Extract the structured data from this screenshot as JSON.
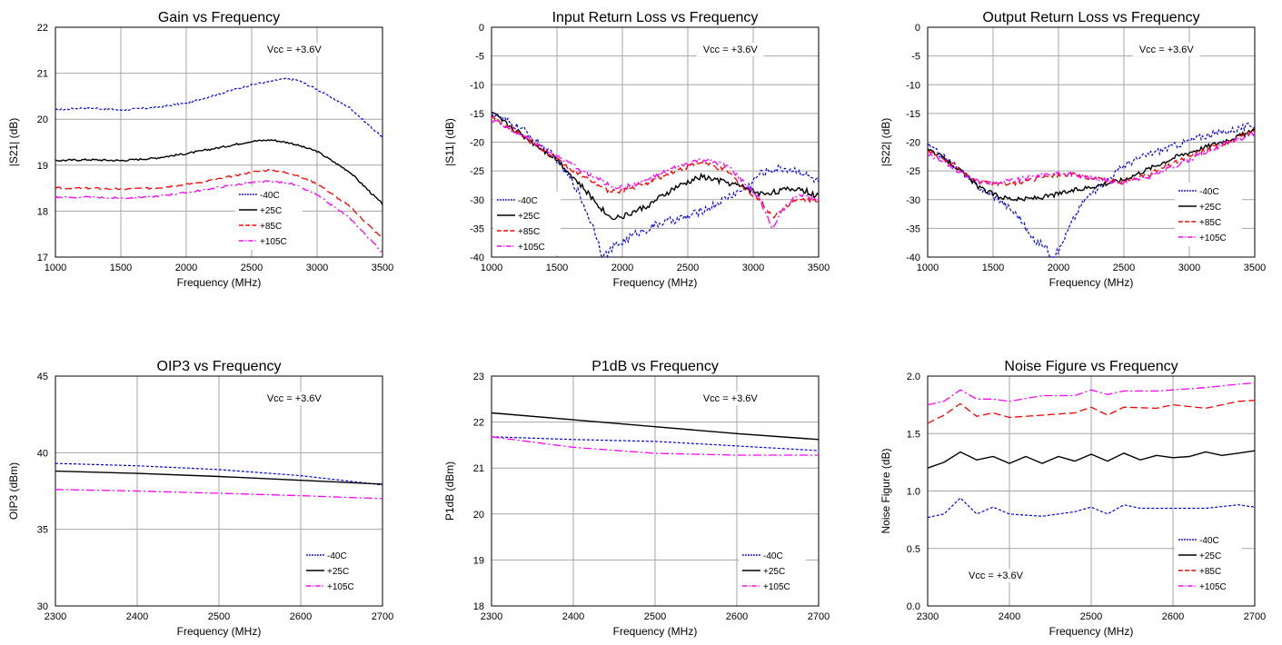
{
  "styles": {
    "-40C": {
      "color": "#0000ff",
      "dash": "3,2",
      "width": 1.2
    },
    "+25C": {
      "color": "#000000",
      "dash": "",
      "width": 1.4
    },
    "+85C": {
      "color": "#ff0000",
      "dash": "8,4",
      "width": 1.3
    },
    "+105C": {
      "color": "#ff00ff",
      "dash": "9,3,2,3",
      "width": 1.3
    }
  },
  "chart_data": [
    {
      "type": "line",
      "title": "Gain vs Frequency",
      "xlabel": "Frequency (MHz)",
      "ylabel": "|S21| (dB)",
      "xlim": [
        1000,
        3500
      ],
      "ylim": [
        17,
        22
      ],
      "xticks": [
        1000,
        1500,
        2000,
        2500,
        3000,
        3500
      ],
      "yticks": [
        17,
        18,
        19,
        20,
        21,
        22
      ],
      "tick_decimals": 0,
      "annotation": "Vcc = +3.6V",
      "legend": "bottom-center",
      "series": [
        {
          "name": "-40C",
          "noise": 0.02,
          "x": [
            1000,
            1250,
            1500,
            1750,
            2000,
            2250,
            2500,
            2750,
            2850,
            3000,
            3250,
            3500
          ],
          "y": [
            20.2,
            20.25,
            20.2,
            20.25,
            20.35,
            20.55,
            20.75,
            20.88,
            20.85,
            20.65,
            20.25,
            19.6
          ]
        },
        {
          "name": "+25C",
          "noise": 0.02,
          "x": [
            1000,
            1250,
            1500,
            1750,
            2000,
            2250,
            2500,
            2650,
            2800,
            3000,
            3250,
            3500
          ],
          "y": [
            19.1,
            19.12,
            19.1,
            19.15,
            19.25,
            19.38,
            19.52,
            19.55,
            19.48,
            19.3,
            18.85,
            18.15
          ]
        },
        {
          "name": "+85C",
          "noise": 0.02,
          "x": [
            1000,
            1250,
            1500,
            1750,
            2000,
            2250,
            2500,
            2650,
            2800,
            3000,
            3250,
            3500
          ],
          "y": [
            18.5,
            18.5,
            18.48,
            18.5,
            18.58,
            18.7,
            18.85,
            18.9,
            18.82,
            18.6,
            18.1,
            17.4
          ]
        },
        {
          "name": "+105C",
          "noise": 0.02,
          "x": [
            1000,
            1250,
            1500,
            1750,
            2000,
            2250,
            2500,
            2650,
            2800,
            3000,
            3250,
            3500
          ],
          "y": [
            18.3,
            18.3,
            18.28,
            18.32,
            18.4,
            18.52,
            18.62,
            18.65,
            18.6,
            18.35,
            17.85,
            17.1
          ]
        }
      ]
    },
    {
      "type": "line",
      "title": "Input Return Loss vs Frequency",
      "xlabel": "Frequency (MHz)",
      "ylabel": "|S11| (dB)",
      "xlim": [
        1000,
        3500
      ],
      "ylim": [
        -40,
        0
      ],
      "xticks": [
        1000,
        1500,
        2000,
        2500,
        3000,
        3500
      ],
      "yticks": [
        -40,
        -35,
        -30,
        -25,
        -20,
        -15,
        -10,
        -5,
        0
      ],
      "tick_decimals": 0,
      "annotation": "Vcc = +3.6V",
      "legend": "bottom-left",
      "series": [
        {
          "name": "-40C",
          "noise": 0.7,
          "x": [
            1000,
            1250,
            1500,
            1650,
            1800,
            1850,
            1950,
            2100,
            2300,
            2500,
            2700,
            2850,
            2950,
            3050,
            3200,
            3350,
            3500
          ],
          "y": [
            -15,
            -18,
            -23,
            -28,
            -36,
            -40,
            -38,
            -36,
            -34,
            -33,
            -31,
            -29,
            -28,
            -25.5,
            -24.5,
            -25,
            -27
          ]
        },
        {
          "name": "+25C",
          "noise": 0.5,
          "x": [
            1000,
            1250,
            1500,
            1700,
            1900,
            2000,
            2200,
            2400,
            2600,
            2800,
            2950,
            3050,
            3200,
            3350,
            3500
          ],
          "y": [
            -15,
            -19,
            -23,
            -28,
            -33,
            -33,
            -31,
            -28,
            -26,
            -27,
            -28,
            -29,
            -28.5,
            -28,
            -29.5
          ]
        },
        {
          "name": "+85C",
          "noise": 0.4,
          "x": [
            1000,
            1250,
            1500,
            1700,
            1900,
            2000,
            2200,
            2400,
            2600,
            2800,
            2950,
            3050,
            3150,
            3250,
            3350,
            3500
          ],
          "y": [
            -15.5,
            -19,
            -23,
            -26,
            -28.5,
            -28.5,
            -27,
            -25,
            -23.5,
            -25,
            -28.5,
            -30,
            -33,
            -31,
            -30,
            -30
          ]
        },
        {
          "name": "+105C",
          "noise": 0.4,
          "x": [
            1000,
            1250,
            1500,
            1700,
            1900,
            2000,
            2200,
            2400,
            2600,
            2800,
            2950,
            3050,
            3150,
            3250,
            3350,
            3500
          ],
          "y": [
            -16,
            -19,
            -22.5,
            -25,
            -27.5,
            -28,
            -26.5,
            -24.5,
            -23,
            -24,
            -27.5,
            -30,
            -35,
            -31,
            -29,
            -30
          ]
        }
      ]
    },
    {
      "type": "line",
      "title": "Output Return Loss vs Frequency",
      "xlabel": "Frequency (MHz)",
      "ylabel": "|S22| (dB)",
      "xlim": [
        1000,
        3500
      ],
      "ylim": [
        -40,
        0
      ],
      "xticks": [
        1000,
        1500,
        2000,
        2500,
        3000,
        3500
      ],
      "yticks": [
        -40,
        -35,
        -30,
        -25,
        -20,
        -15,
        -10,
        -5,
        0
      ],
      "tick_decimals": 0,
      "annotation": "Vcc = +3.6V",
      "legend": "bottom-right",
      "series": [
        {
          "name": "-40C",
          "noise": 0.6,
          "x": [
            1000,
            1200,
            1400,
            1550,
            1700,
            1800,
            1900,
            1950,
            2000,
            2100,
            2200,
            2350,
            2500,
            2700,
            2900,
            3100,
            3300,
            3500
          ],
          "y": [
            -20.5,
            -24,
            -28,
            -30,
            -33,
            -37,
            -38,
            -40,
            -39,
            -34,
            -30,
            -27,
            -24,
            -22,
            -20.5,
            -19,
            -18,
            -17
          ]
        },
        {
          "name": "+25C",
          "noise": 0.4,
          "x": [
            1000,
            1200,
            1400,
            1550,
            1700,
            1900,
            2100,
            2300,
            2500,
            2700,
            2900,
            3100,
            3300,
            3500
          ],
          "y": [
            -21,
            -24,
            -28,
            -29.5,
            -30,
            -29.5,
            -28.5,
            -27.5,
            -26.5,
            -24.5,
            -22.5,
            -21,
            -19.5,
            -18
          ]
        },
        {
          "name": "+85C",
          "noise": 0.4,
          "x": [
            1000,
            1200,
            1400,
            1550,
            1700,
            1900,
            2100,
            2300,
            2500,
            2700,
            2900,
            3100,
            3300,
            3500
          ],
          "y": [
            -21.5,
            -24,
            -27,
            -27.5,
            -27,
            -26,
            -25.5,
            -26.5,
            -27,
            -25.5,
            -23.5,
            -21.5,
            -20,
            -18
          ]
        },
        {
          "name": "+105C",
          "noise": 0.4,
          "x": [
            1000,
            1200,
            1400,
            1550,
            1700,
            1900,
            2100,
            2300,
            2500,
            2700,
            2900,
            3100,
            3300,
            3500
          ],
          "y": [
            -22,
            -24.5,
            -27,
            -27,
            -26.5,
            -25.5,
            -25.5,
            -26.5,
            -27,
            -26,
            -24,
            -22,
            -20,
            -18.5
          ]
        }
      ]
    },
    {
      "type": "line",
      "title": "OIP3 vs Frequency",
      "xlabel": "Frequency (MHz)",
      "ylabel": "OIP3 (dBm)",
      "xlim": [
        2300,
        2700
      ],
      "ylim": [
        30,
        45
      ],
      "xticks": [
        2300,
        2400,
        2500,
        2600,
        2700
      ],
      "yticks": [
        30,
        35,
        40,
        45
      ],
      "tick_decimals": 0,
      "annotation": "Vcc = +3.6V",
      "legend": "bottom-right",
      "series": [
        {
          "name": "-40C",
          "x": [
            2300,
            2400,
            2500,
            2600,
            2700
          ],
          "y": [
            39.3,
            39.15,
            38.9,
            38.5,
            37.9
          ]
        },
        {
          "name": "+25C",
          "x": [
            2300,
            2400,
            2500,
            2600,
            2700
          ],
          "y": [
            38.8,
            38.65,
            38.45,
            38.2,
            37.95
          ]
        },
        {
          "name": "+105C",
          "x": [
            2300,
            2400,
            2500,
            2600,
            2700
          ],
          "y": [
            37.6,
            37.5,
            37.35,
            37.2,
            37.0
          ]
        }
      ]
    },
    {
      "type": "line",
      "title": "P1dB vs Frequency",
      "xlabel": "Frequency (MHz)",
      "ylabel": "P1dB (dBm)",
      "xlim": [
        2300,
        2700
      ],
      "ylim": [
        18,
        23
      ],
      "xticks": [
        2300,
        2400,
        2500,
        2600,
        2700
      ],
      "yticks": [
        18,
        19,
        20,
        21,
        22,
        23
      ],
      "tick_decimals": 0,
      "annotation": "Vcc = +3.6V",
      "legend": "bottom-right",
      "series": [
        {
          "name": "-40C",
          "x": [
            2300,
            2400,
            2500,
            2600,
            2700
          ],
          "y": [
            21.68,
            21.62,
            21.58,
            21.48,
            21.38
          ]
        },
        {
          "name": "+25C",
          "x": [
            2300,
            2400,
            2500,
            2600,
            2700
          ],
          "y": [
            22.2,
            22.05,
            21.9,
            21.75,
            21.62
          ]
        },
        {
          "name": "+105C",
          "x": [
            2300,
            2400,
            2500,
            2600,
            2700
          ],
          "y": [
            21.68,
            21.45,
            21.32,
            21.28,
            21.28
          ]
        }
      ]
    },
    {
      "type": "line",
      "title": "Noise Figure vs Frequency",
      "xlabel": "Frequency (MHz)",
      "ylabel": "Noise Figure (dB)",
      "xlim": [
        2300,
        2700
      ],
      "ylim": [
        0.0,
        2.0
      ],
      "xticks": [
        2300,
        2400,
        2500,
        2600,
        2700
      ],
      "yticks": [
        0.0,
        0.5,
        1.0,
        1.5,
        2.0
      ],
      "tick_decimals": 1,
      "annotation": "Vcc = +3.6V",
      "annotation_pos": "bottom-left",
      "legend": "bottom-right",
      "series": [
        {
          "name": "-40C",
          "x": [
            2300,
            2320,
            2340,
            2360,
            2380,
            2400,
            2440,
            2480,
            2500,
            2520,
            2540,
            2560,
            2600,
            2640,
            2680,
            2700
          ],
          "y": [
            0.77,
            0.8,
            0.94,
            0.8,
            0.86,
            0.8,
            0.78,
            0.82,
            0.86,
            0.8,
            0.88,
            0.85,
            0.85,
            0.85,
            0.88,
            0.86
          ]
        },
        {
          "name": "+25C",
          "x": [
            2300,
            2320,
            2340,
            2360,
            2380,
            2400,
            2420,
            2440,
            2460,
            2480,
            2500,
            2520,
            2540,
            2560,
            2580,
            2600,
            2620,
            2640,
            2660,
            2680,
            2700
          ],
          "y": [
            1.2,
            1.25,
            1.34,
            1.27,
            1.3,
            1.24,
            1.3,
            1.24,
            1.3,
            1.26,
            1.32,
            1.26,
            1.33,
            1.27,
            1.31,
            1.29,
            1.3,
            1.34,
            1.31,
            1.33,
            1.35
          ]
        },
        {
          "name": "+85C",
          "x": [
            2300,
            2320,
            2340,
            2360,
            2380,
            2400,
            2440,
            2480,
            2500,
            2520,
            2540,
            2580,
            2600,
            2640,
            2680,
            2700
          ],
          "y": [
            1.59,
            1.66,
            1.76,
            1.65,
            1.68,
            1.64,
            1.66,
            1.68,
            1.73,
            1.66,
            1.73,
            1.72,
            1.75,
            1.72,
            1.78,
            1.79
          ]
        },
        {
          "name": "+105C",
          "x": [
            2300,
            2320,
            2340,
            2360,
            2380,
            2400,
            2440,
            2480,
            2500,
            2520,
            2540,
            2580,
            2600,
            2640,
            2680,
            2700
          ],
          "y": [
            1.75,
            1.78,
            1.88,
            1.8,
            1.8,
            1.78,
            1.83,
            1.83,
            1.88,
            1.84,
            1.87,
            1.87,
            1.88,
            1.9,
            1.93,
            1.94
          ]
        }
      ]
    }
  ]
}
